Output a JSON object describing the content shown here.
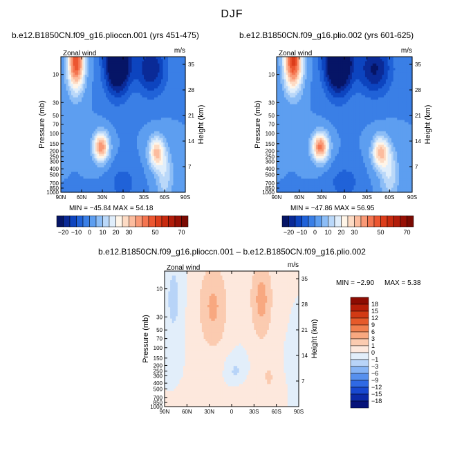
{
  "page": {
    "title": "DJF",
    "diff_title": "b.e12.B1850CN.f09_g16.plioccn.001 – b.e12.B1850CN.f09_g16.plio.002"
  },
  "chart_data": [
    {
      "type": "heatmap",
      "title": "b.e12.B1850CN.f09_g16.plioccn.001 (yrs 451-475)",
      "left_label": "Zonal wind",
      "units": "m/s",
      "ylabel": "Pressure (mb)",
      "ylabel_right": "Height (km)",
      "x_ticks": [
        "90N",
        "60N",
        "30N",
        "0",
        "30S",
        "60S",
        "90S"
      ],
      "x_range": [
        90,
        -90
      ],
      "pressure_ticks": [
        "10",
        "30",
        "50",
        "70",
        "100",
        "150",
        "200",
        "250",
        "300",
        "400",
        "500",
        "700",
        "850",
        "1000"
      ],
      "height_ticks": [
        "35",
        "28",
        "21",
        "14",
        "7"
      ],
      "stats": "MIN = −45.84   MAX = 54.18",
      "min": -45.84,
      "max": 54.18,
      "features": [
        {
          "lat": 65,
          "p": 8,
          "u": 50
        },
        {
          "lat": 30,
          "p": 150,
          "u": 38
        },
        {
          "lat": 10,
          "p": 8,
          "u": -40
        },
        {
          "lat": -50,
          "p": 180,
          "u": 32
        }
      ],
      "colorbar": {
        "orientation": "horizontal",
        "levels": [
          -25,
          -20,
          -15,
          -10,
          -5,
          0,
          5,
          10,
          15,
          20,
          25,
          30,
          35,
          40,
          45,
          50,
          55,
          60,
          65,
          70,
          75
        ],
        "labels": [
          "−20",
          "−10",
          "0",
          "10",
          "20",
          "30",
          "50",
          "70"
        ],
        "colors": [
          "#061566",
          "#0a2a97",
          "#0d44bf",
          "#2062d8",
          "#3a7fe6",
          "#5d9ef0",
          "#8cbdf6",
          "#bad8f9",
          "#e0eefb",
          "#fff5e8",
          "#fddbc4",
          "#fcbc9e",
          "#f99976",
          "#f47550",
          "#ec5630",
          "#dc3d1b",
          "#c72a0f",
          "#b11c0a",
          "#971005",
          "#7a0a02"
        ]
      }
    },
    {
      "type": "heatmap",
      "title": "b.e12.B1850CN.f09_g16.plio.002 (yrs 601-625)",
      "left_label": "Zonal wind",
      "units": "m/s",
      "ylabel": "Pressure (mb)",
      "ylabel_right": "Height (km)",
      "x_ticks": [
        "90N",
        "60N",
        "30N",
        "0",
        "30S",
        "60S",
        "90S"
      ],
      "x_range": [
        90,
        -90
      ],
      "pressure_ticks": [
        "10",
        "30",
        "50",
        "70",
        "100",
        "150",
        "200",
        "250",
        "300",
        "400",
        "500",
        "700",
        "850",
        "1000"
      ],
      "height_ticks": [
        "35",
        "28",
        "21",
        "14",
        "7"
      ],
      "stats": "MIN = −47.86   MAX = 56.95",
      "min": -47.86,
      "max": 56.95,
      "features": [
        {
          "lat": 65,
          "p": 8,
          "u": 52
        },
        {
          "lat": 30,
          "p": 150,
          "u": 40
        },
        {
          "lat": 10,
          "p": 8,
          "u": -42
        },
        {
          "lat": -50,
          "p": 180,
          "u": 30
        }
      ],
      "colorbar": {
        "orientation": "horizontal",
        "levels": [
          -25,
          -20,
          -15,
          -10,
          -5,
          0,
          5,
          10,
          15,
          20,
          25,
          30,
          35,
          40,
          45,
          50,
          55,
          60,
          65,
          70,
          75
        ],
        "labels": [
          "−20",
          "−10",
          "0",
          "10",
          "20",
          "30",
          "50",
          "70"
        ],
        "colors": [
          "#061566",
          "#0a2a97",
          "#0d44bf",
          "#2062d8",
          "#3a7fe6",
          "#5d9ef0",
          "#8cbdf6",
          "#bad8f9",
          "#e0eefb",
          "#fff5e8",
          "#fddbc4",
          "#fcbc9e",
          "#f99976",
          "#f47550",
          "#ec5630",
          "#dc3d1b",
          "#c72a0f",
          "#b11c0a",
          "#971005",
          "#7a0a02"
        ]
      }
    },
    {
      "type": "heatmap",
      "title": "",
      "left_label": "Zonal wind",
      "units": "m/s",
      "ylabel": "Pressure (mb)",
      "ylabel_right": "Height (km)",
      "x_ticks": [
        "90N",
        "60N",
        "30N",
        "0",
        "30S",
        "60S",
        "90S"
      ],
      "x_range": [
        90,
        -90
      ],
      "pressure_ticks": [
        "10",
        "30",
        "50",
        "70",
        "100",
        "150",
        "200",
        "250",
        "300",
        "400",
        "500",
        "700",
        "850",
        "1000"
      ],
      "height_ticks": [
        "35",
        "28",
        "21",
        "14",
        "7"
      ],
      "stats_min": "MIN = −2.90",
      "stats_max": "MAX =   5.38",
      "min": -2.9,
      "max": 5.38,
      "features": [
        {
          "lat": 75,
          "p": 15,
          "u": -1.5
        },
        {
          "lat": 30,
          "p": 20,
          "u": 3.5
        },
        {
          "lat": -40,
          "p": 15,
          "u": 4
        },
        {
          "lat": 0,
          "p": 300,
          "u": -1
        }
      ],
      "colorbar": {
        "orientation": "vertical",
        "levels": [
          -21,
          -18,
          -15,
          -12,
          -9,
          -6,
          -3,
          -1,
          0,
          1,
          3,
          6,
          9,
          12,
          15,
          18,
          21
        ],
        "labels": [
          "18",
          "15",
          "12",
          "9",
          "6",
          "3",
          "1",
          "0",
          "−1",
          "−3",
          "−6",
          "−9",
          "−12",
          "−15",
          "−18"
        ],
        "colors": [
          "#07137a",
          "#0c2aa8",
          "#1848d0",
          "#2f69e4",
          "#5690ee",
          "#86b4f5",
          "#b8d4f8",
          "#e2eefa",
          "#fde8dd",
          "#fbcbb0",
          "#f8a880",
          "#f1804f",
          "#e65a2a",
          "#d23a14",
          "#b51e08",
          "#8d0c02"
        ]
      }
    }
  ]
}
